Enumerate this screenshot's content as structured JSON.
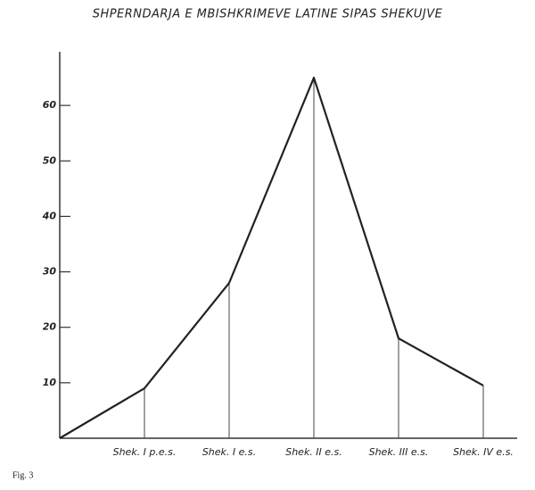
{
  "chart_data": {
    "type": "line",
    "title": "SHPERNDARJA E MBISHKRIMEVE LATINE SIPAS SHEKUJVE",
    "caption": "Fig. 3",
    "categories": [
      null,
      "Shek. I p.e.s.",
      "Shek. I e.s.",
      "Shek. II e.s.",
      "Shek. III e.s.",
      "Shek. IV e.s."
    ],
    "values": [
      0,
      9,
      28,
      65,
      18,
      9.5
    ],
    "color": "#222222",
    "drop_lines": true,
    "ylim": [
      0,
      70
    ],
    "yticks": [
      10,
      20,
      30,
      40,
      50,
      60
    ]
  }
}
